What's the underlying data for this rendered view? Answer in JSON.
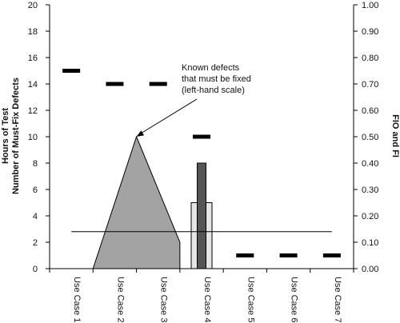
{
  "chart_data": {
    "type": "bar",
    "categories": [
      "Use Case 1",
      "Use Case 2",
      "Use Case 3",
      "Use Case 4",
      "Use Case 5",
      "Use Case 6",
      "Use Case 7"
    ],
    "ylabel_left_line1": "Hours of Test",
    "ylabel_left_line2": "Number of Must-Fix Defects",
    "ylabel_right": "FIO and FI",
    "ylim_left": [
      0,
      20
    ],
    "ylim_right": [
      0,
      1.0
    ],
    "yticks_left": [
      "0",
      "2",
      "4",
      "6",
      "8",
      "10",
      "12",
      "14",
      "16",
      "18",
      "20"
    ],
    "yticks_right": [
      "0.00",
      "0.10",
      "0.20",
      "0.30",
      "0.40",
      "0.50",
      "0.60",
      "0.70",
      "0.80",
      "0.90",
      "1.00"
    ],
    "series": [
      {
        "type": "area",
        "axis": "left",
        "color": "#a3a3a3",
        "points": [
          {
            "x": "Use Case 2",
            "y": 0
          },
          {
            "x": "Use Case 3",
            "y": 10
          },
          {
            "x": "Use Case 4",
            "y": 2
          }
        ]
      },
      {
        "type": "bar",
        "axis": "left",
        "color": "#e6e6e6",
        "category": "Use Case 4",
        "value": 5
      },
      {
        "type": "bar",
        "axis": "left",
        "color": "#555555",
        "category": "Use Case 4",
        "value": 8
      },
      {
        "type": "markers",
        "axis": "right",
        "color": "#000000",
        "values": [
          0.75,
          0.7,
          0.7,
          0.5,
          0.05,
          0.05,
          0.05
        ]
      },
      {
        "type": "hline",
        "axis": "right",
        "color": "#000000",
        "value": 0.14
      }
    ],
    "annotations": [
      {
        "lines": [
          "Known defects",
          "that must be fixed",
          "(left-hand scale)"
        ],
        "points_to": {
          "x": "Use Case 3",
          "y": 10
        }
      }
    ],
    "grid": false,
    "legend": "none"
  }
}
